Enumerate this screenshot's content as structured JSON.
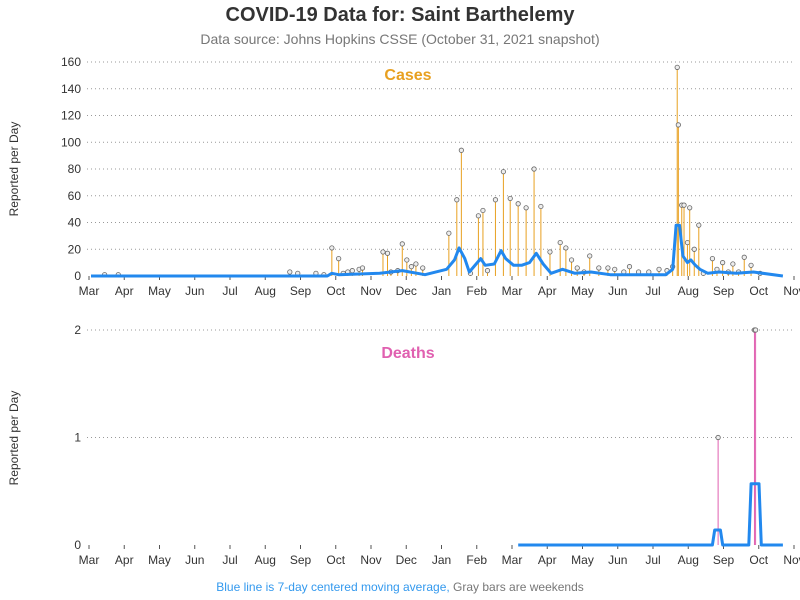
{
  "title": "COVID-19 Data for: Saint Barthelemy",
  "subtitle": "Data source: Johns Hopkins CSSE (October 31, 2021 snapshot)",
  "footer": {
    "blue_text": "Blue line is 7-day centered moving average,",
    "gray_text": " Gray bars are weekends"
  },
  "colors": {
    "cases": "#e8a020",
    "deaths": "#e060b0",
    "average": "#2288ee",
    "weekend": "#808080"
  },
  "chart_data": [
    {
      "type": "bar",
      "panel": "cases",
      "title": "Cases",
      "ylabel": "Reported per Day",
      "ylim": [
        0,
        160
      ],
      "yticks": [
        0,
        20,
        40,
        60,
        80,
        100,
        120,
        140,
        160
      ],
      "x_tick_labels": [
        "Mar",
        "Apr",
        "May",
        "Jun",
        "Jul",
        "Aug",
        "Sep",
        "Oct",
        "Nov",
        "Dec",
        "Jan",
        "Feb",
        "Mar",
        "Apr",
        "May",
        "Jun",
        "Jul",
        "Aug",
        "Sep",
        "Oct",
        "Nov"
      ],
      "x_range": [
        "2020-03-01",
        "2021-11-01"
      ],
      "grid": "horizontal dotted",
      "spikes": [
        {
          "date": "2020-03-13",
          "value": 1
        },
        {
          "date": "2020-03-25",
          "value": 1
        },
        {
          "date": "2020-08-23",
          "value": 3
        },
        {
          "date": "2020-08-30",
          "value": 2
        },
        {
          "date": "2020-09-15",
          "value": 2
        },
        {
          "date": "2020-09-22",
          "value": 1
        },
        {
          "date": "2020-09-29",
          "value": 21
        },
        {
          "date": "2020-10-05",
          "value": 13
        },
        {
          "date": "2020-10-09",
          "value": 2
        },
        {
          "date": "2020-10-13",
          "value": 3
        },
        {
          "date": "2020-10-17",
          "value": 4
        },
        {
          "date": "2020-10-23",
          "value": 5
        },
        {
          "date": "2020-10-26",
          "value": 6
        },
        {
          "date": "2020-11-13",
          "value": 18
        },
        {
          "date": "2020-11-17",
          "value": 17
        },
        {
          "date": "2020-11-20",
          "value": 3
        },
        {
          "date": "2020-11-26",
          "value": 4
        },
        {
          "date": "2020-11-30",
          "value": 24
        },
        {
          "date": "2020-12-04",
          "value": 12
        },
        {
          "date": "2020-12-08",
          "value": 7
        },
        {
          "date": "2020-12-12",
          "value": 9
        },
        {
          "date": "2020-12-18",
          "value": 6
        },
        {
          "date": "2021-01-10",
          "value": 32
        },
        {
          "date": "2021-01-17",
          "value": 57
        },
        {
          "date": "2021-01-21",
          "value": 94
        },
        {
          "date": "2021-01-29",
          "value": 2
        },
        {
          "date": "2021-02-05",
          "value": 45
        },
        {
          "date": "2021-02-09",
          "value": 49
        },
        {
          "date": "2021-02-13",
          "value": 4
        },
        {
          "date": "2021-02-20",
          "value": 57
        },
        {
          "date": "2021-02-27",
          "value": 78
        },
        {
          "date": "2021-03-05",
          "value": 58
        },
        {
          "date": "2021-03-12",
          "value": 54
        },
        {
          "date": "2021-03-19",
          "value": 51
        },
        {
          "date": "2021-03-26",
          "value": 80
        },
        {
          "date": "2021-04-01",
          "value": 52
        },
        {
          "date": "2021-04-09",
          "value": 18
        },
        {
          "date": "2021-04-18",
          "value": 25
        },
        {
          "date": "2021-04-23",
          "value": 21
        },
        {
          "date": "2021-04-28",
          "value": 12
        },
        {
          "date": "2021-05-03",
          "value": 6
        },
        {
          "date": "2021-05-09",
          "value": 3
        },
        {
          "date": "2021-05-14",
          "value": 15
        },
        {
          "date": "2021-05-22",
          "value": 6
        },
        {
          "date": "2021-05-30",
          "value": 6
        },
        {
          "date": "2021-06-05",
          "value": 5
        },
        {
          "date": "2021-06-13",
          "value": 3
        },
        {
          "date": "2021-06-18",
          "value": 7
        },
        {
          "date": "2021-06-26",
          "value": 3
        },
        {
          "date": "2021-07-05",
          "value": 3
        },
        {
          "date": "2021-07-14",
          "value": 5
        },
        {
          "date": "2021-07-21",
          "value": 4
        },
        {
          "date": "2021-07-26",
          "value": 7
        },
        {
          "date": "2021-07-30",
          "value": 156
        },
        {
          "date": "2021-07-31",
          "value": 113
        },
        {
          "date": "2021-08-03",
          "value": 53
        },
        {
          "date": "2021-08-05",
          "value": 53
        },
        {
          "date": "2021-08-08",
          "value": 25
        },
        {
          "date": "2021-08-10",
          "value": 51
        },
        {
          "date": "2021-08-14",
          "value": 20
        },
        {
          "date": "2021-08-18",
          "value": 38
        },
        {
          "date": "2021-08-22",
          "value": 2
        },
        {
          "date": "2021-08-30",
          "value": 13
        },
        {
          "date": "2021-09-03",
          "value": 5
        },
        {
          "date": "2021-09-08",
          "value": 10
        },
        {
          "date": "2021-09-13",
          "value": 3
        },
        {
          "date": "2021-09-17",
          "value": 9
        },
        {
          "date": "2021-09-22",
          "value": 3
        },
        {
          "date": "2021-09-27",
          "value": 14
        },
        {
          "date": "2021-10-03",
          "value": 8
        },
        {
          "date": "2021-10-11",
          "value": 2
        }
      ],
      "moving_average": [
        {
          "date": "2020-03-01",
          "value": 0
        },
        {
          "date": "2020-09-25",
          "value": 0
        },
        {
          "date": "2020-09-29",
          "value": 2
        },
        {
          "date": "2020-10-05",
          "value": 1
        },
        {
          "date": "2020-11-10",
          "value": 2
        },
        {
          "date": "2020-11-30",
          "value": 4
        },
        {
          "date": "2020-12-20",
          "value": 1
        },
        {
          "date": "2021-01-08",
          "value": 5
        },
        {
          "date": "2021-01-15",
          "value": 12
        },
        {
          "date": "2021-01-19",
          "value": 21
        },
        {
          "date": "2021-01-24",
          "value": 13
        },
        {
          "date": "2021-01-28",
          "value": 3
        },
        {
          "date": "2021-02-03",
          "value": 9
        },
        {
          "date": "2021-02-07",
          "value": 13
        },
        {
          "date": "2021-02-11",
          "value": 8
        },
        {
          "date": "2021-02-19",
          "value": 9
        },
        {
          "date": "2021-02-25",
          "value": 19
        },
        {
          "date": "2021-03-01",
          "value": 13
        },
        {
          "date": "2021-03-08",
          "value": 8
        },
        {
          "date": "2021-03-15",
          "value": 8
        },
        {
          "date": "2021-03-22",
          "value": 10
        },
        {
          "date": "2021-03-28",
          "value": 17
        },
        {
          "date": "2021-04-03",
          "value": 9
        },
        {
          "date": "2021-04-10",
          "value": 2
        },
        {
          "date": "2021-04-20",
          "value": 5
        },
        {
          "date": "2021-05-01",
          "value": 2
        },
        {
          "date": "2021-05-15",
          "value": 3
        },
        {
          "date": "2021-06-01",
          "value": 1
        },
        {
          "date": "2021-07-20",
          "value": 1
        },
        {
          "date": "2021-07-26",
          "value": 5
        },
        {
          "date": "2021-07-29",
          "value": 38
        },
        {
          "date": "2021-08-01",
          "value": 38
        },
        {
          "date": "2021-08-04",
          "value": 15
        },
        {
          "date": "2021-08-08",
          "value": 10
        },
        {
          "date": "2021-08-11",
          "value": 12
        },
        {
          "date": "2021-08-15",
          "value": 8
        },
        {
          "date": "2021-08-19",
          "value": 5
        },
        {
          "date": "2021-08-26",
          "value": 2
        },
        {
          "date": "2021-09-05",
          "value": 3
        },
        {
          "date": "2021-09-20",
          "value": 2
        },
        {
          "date": "2021-10-05",
          "value": 3
        },
        {
          "date": "2021-10-31",
          "value": 0
        }
      ]
    },
    {
      "type": "bar",
      "panel": "deaths",
      "title": "Deaths",
      "ylabel": "Reported per Day",
      "ylim": [
        0,
        2
      ],
      "yticks": [
        0,
        1,
        2
      ],
      "x_tick_labels": [
        "Mar",
        "Apr",
        "May",
        "Jun",
        "Jul",
        "Aug",
        "Sep",
        "Oct",
        "Nov",
        "Dec",
        "Jan",
        "Feb",
        "Mar",
        "Apr",
        "May",
        "Jun",
        "Jul",
        "Aug",
        "Sep",
        "Oct",
        "Nov"
      ],
      "x_range": [
        "2020-03-01",
        "2021-11-01"
      ],
      "grid": "horizontal dotted",
      "spikes": [
        {
          "date": "2021-09-04",
          "value": 1
        },
        {
          "date": "2021-10-06",
          "value": 2
        },
        {
          "date": "2021-10-07",
          "value": 2
        }
      ],
      "moving_average": [
        {
          "date": "2021-03-12",
          "value": 0
        },
        {
          "date": "2021-08-30",
          "value": 0
        },
        {
          "date": "2021-09-01",
          "value": 0.14
        },
        {
          "date": "2021-09-06",
          "value": 0.14
        },
        {
          "date": "2021-09-08",
          "value": 0
        },
        {
          "date": "2021-10-01",
          "value": 0
        },
        {
          "date": "2021-10-03",
          "value": 0.57
        },
        {
          "date": "2021-10-10",
          "value": 0.57
        },
        {
          "date": "2021-10-12",
          "value": 0
        },
        {
          "date": "2021-10-31",
          "value": 0
        }
      ]
    }
  ]
}
